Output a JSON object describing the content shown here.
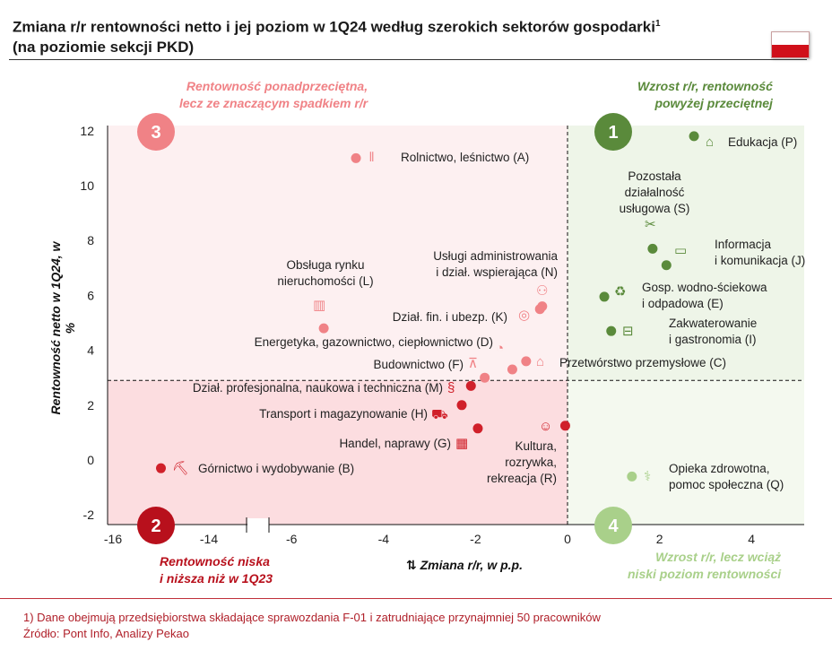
{
  "header": {
    "title_line1": "Zmiana r/r rentowności netto i jej poziom w 1Q24 według szerokich sektorów gospodarki",
    "title_sup": "1",
    "title_line2": "(na poziomie sekcji PKD)"
  },
  "flag_colors": {
    "top": "#ffffff",
    "bottom": "#d0101a"
  },
  "quadrants": [
    {
      "number": "3",
      "note": "Rentowność ponadprzeciętna,\nlecz ze znaczącym spadkiem r/r",
      "color": "#f08286",
      "bg": "#fdf0f1"
    },
    {
      "number": "1",
      "note": "Wzrost r/r, rentowność\npowyżej przeciętnej",
      "color": "#5a8a3b",
      "bg": "#eef5e8"
    },
    {
      "number": "2",
      "note": "Rentowność niska\ni niższa niż w 1Q23",
      "color": "#b8101c",
      "bg": "#fcdde0"
    },
    {
      "number": "4",
      "note": "Wzrost r/r, lecz wciąż\nniski poziom rentowności",
      "color": "#a9d08a",
      "bg": "#f4f9ef"
    }
  ],
  "chart_data": {
    "type": "scatter",
    "xlabel": "Zmiana r/r, w p.p.",
    "ylabel": "Rentowność netto w 1Q24, w %",
    "xticks": [
      -16,
      -14,
      -6,
      -4,
      -2,
      0,
      2,
      4
    ],
    "yticks": [
      12,
      10,
      8,
      6,
      4,
      2,
      0,
      -2
    ],
    "xlim": [
      -16,
      5.2
    ],
    "ylim": [
      -2.3,
      12.3
    ],
    "x_axis_break": [
      -14,
      -6
    ],
    "reference_lines": {
      "x": 0,
      "y": 2.9
    },
    "grid": false,
    "points": [
      {
        "label": "Rolnictwo, leśnictwo (A)",
        "x": -4.6,
        "y": 11.0,
        "color": "#f08286",
        "icon": "wheat-icon"
      },
      {
        "label": "Obsługa rynku\nnieruchomości (L)",
        "x": -5.3,
        "y": 4.8,
        "color": "#f08286",
        "icon": "buildings-icon"
      },
      {
        "label": "Usługi administrowania\ni dział. wspierająca (N)",
        "x": -0.55,
        "y": 5.6,
        "color": "#f08286",
        "icon": "people-icon"
      },
      {
        "label": "Dział. fin. i ubezp. (K)",
        "x": -0.6,
        "y": 5.5,
        "color": "#f08286",
        "icon": "coins-icon"
      },
      {
        "label": "Energetyka, gazownictwo, ciepłownictwo (D)",
        "x": -1.2,
        "y": 3.3,
        "color": "#f08286",
        "icon": "energy-icon"
      },
      {
        "label": "Budownictwo (F)",
        "x": -1.8,
        "y": 3.0,
        "color": "#f08286",
        "icon": "crane-icon"
      },
      {
        "label": "Przetwórstwo przemysłowe (C)",
        "x": -0.9,
        "y": 3.6,
        "color": "#f08286",
        "icon": "factory-icon"
      },
      {
        "label": "Dział. profesjonalna, naukowa i techniczna (M)",
        "x": -2.1,
        "y": 2.7,
        "color": "#d0202a",
        "icon": "paragraph-icon"
      },
      {
        "label": "Transport i magazynowanie (H)",
        "x": -2.3,
        "y": 2.0,
        "color": "#d0202a",
        "icon": "truck-icon"
      },
      {
        "label": "Handel, naprawy (G)",
        "x": -1.95,
        "y": 1.15,
        "color": "#d0202a",
        "icon": "basket-icon"
      },
      {
        "label": "Kultura,\nrozrywka,\nrekreacja (R)",
        "x": -0.05,
        "y": 1.25,
        "color": "#d0202a",
        "icon": "theater-masks-icon"
      },
      {
        "label": "Górnictwo i wydobywanie (B)",
        "x": -15.0,
        "y": -0.3,
        "color": "#d0202a",
        "icon": "mine-cart-icon"
      },
      {
        "label": "Edukacja (P)",
        "x": 2.75,
        "y": 11.8,
        "color": "#5a8a3b",
        "icon": "graduation-cap-icon"
      },
      {
        "label": "Pozostała\ndziałalność\nusługowa (S)",
        "x": 1.85,
        "y": 7.7,
        "color": "#5a8a3b",
        "icon": "tools-icon"
      },
      {
        "label": "Informacja\ni komunikacja (J)",
        "x": 2.15,
        "y": 7.1,
        "color": "#5a8a3b",
        "icon": "computer-icon"
      },
      {
        "label": "Gosp. wodno-ściekowa\ni odpadowa (E)",
        "x": 0.8,
        "y": 5.95,
        "color": "#5a8a3b",
        "icon": "recycle-icon"
      },
      {
        "label": "Zakwaterowanie\ni gastronomia (I)",
        "x": 0.95,
        "y": 4.7,
        "color": "#5a8a3b",
        "icon": "bed-icon"
      },
      {
        "label": "Opieka zdrowotna,\npomoc społeczna (Q)",
        "x": 1.4,
        "y": -0.6,
        "color": "#a9d08a",
        "icon": "stethoscope-icon"
      }
    ]
  },
  "footer": {
    "note": "1) Dane obejmują przedsiębiorstwa składające sprawozdania F-01 i zatrudniające przynajmniej 50 pracowników",
    "source": "Źródło: Pont Info, Analizy Pekao"
  }
}
